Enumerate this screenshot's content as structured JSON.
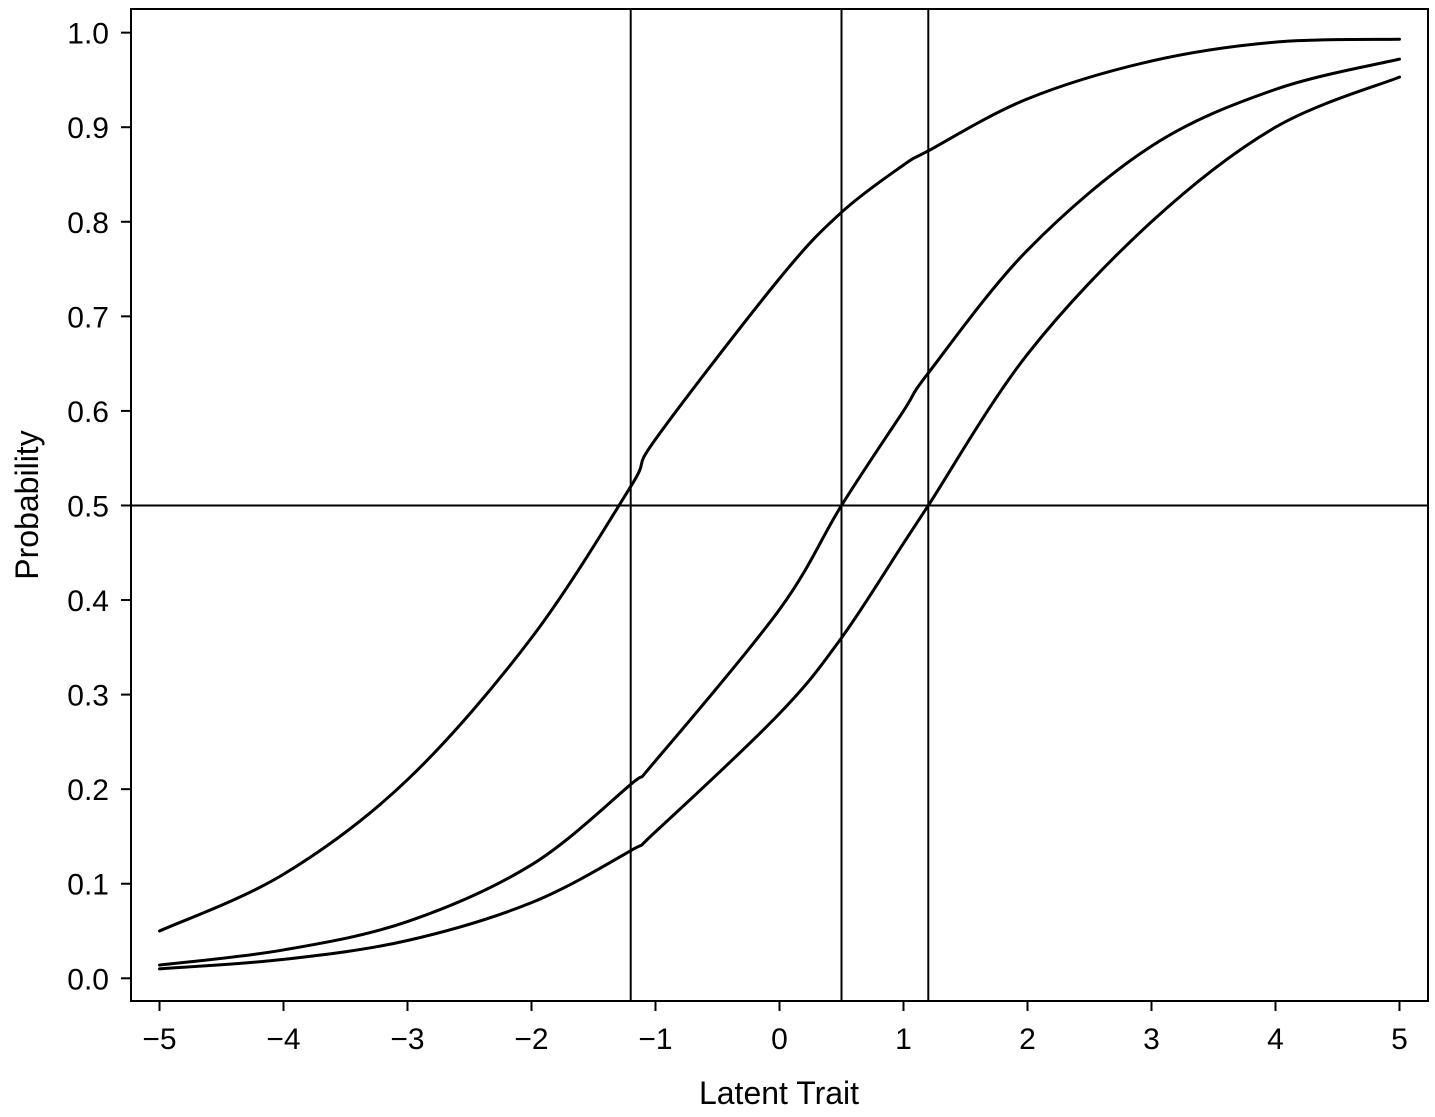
{
  "chart_data": {
    "type": "line",
    "xlabel": "Latent Trait",
    "ylabel": "Probability",
    "xlim": [
      -5.23,
      5.23
    ],
    "ylim": [
      -0.024,
      1.025
    ],
    "x_ticks": [
      -5,
      -4,
      -3,
      -2,
      -1,
      0,
      1,
      2,
      3,
      4,
      5
    ],
    "x_tick_labels": [
      "−5",
      "−4",
      "−3",
      "−2",
      "−1",
      "0",
      "1",
      "2",
      "3",
      "4",
      "5"
    ],
    "y_ticks": [
      0.0,
      0.1,
      0.2,
      0.3,
      0.4,
      0.5,
      0.6,
      0.7,
      0.8,
      0.9,
      1.0
    ],
    "y_tick_labels": [
      "0.0",
      "0.1",
      "0.2",
      "0.3",
      "0.4",
      "0.5",
      "0.6",
      "0.7",
      "0.8",
      "0.9",
      "1.0"
    ],
    "grid": false,
    "legend": "none",
    "line_color": "#000000",
    "series": [
      {
        "x": [
          -5,
          -4,
          -3,
          -2,
          -1.2,
          -1,
          0,
          0.5,
          1,
          1.2,
          2,
          3,
          4,
          5
        ],
        "y": [
          0.05,
          0.11,
          0.21,
          0.36,
          0.52,
          0.57,
          0.74,
          0.81,
          0.86,
          0.875,
          0.93,
          0.97,
          0.99,
          0.993
        ]
      },
      {
        "x": [
          -5,
          -4,
          -3,
          -2,
          -1.2,
          -1,
          0,
          0.5,
          1,
          1.2,
          2,
          3,
          4,
          5
        ],
        "y": [
          0.014,
          0.03,
          0.06,
          0.12,
          0.205,
          0.23,
          0.39,
          0.5,
          0.6,
          0.64,
          0.77,
          0.88,
          0.94,
          0.972
        ]
      },
      {
        "x": [
          -5,
          -4,
          -3,
          -2,
          -1.2,
          -1,
          0,
          0.5,
          1,
          1.2,
          2,
          3,
          4,
          5
        ],
        "y": [
          0.01,
          0.02,
          0.04,
          0.08,
          0.135,
          0.155,
          0.28,
          0.36,
          0.46,
          0.5,
          0.66,
          0.8,
          0.9,
          0.953
        ]
      }
    ],
    "reference_lines": {
      "vertical_x": [
        -1.2,
        0.5,
        1.2
      ],
      "horizontal_y": [
        0.5
      ]
    }
  }
}
